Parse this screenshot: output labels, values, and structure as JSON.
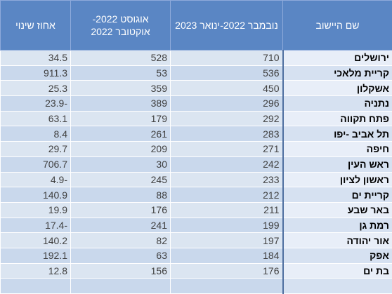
{
  "table": {
    "columns": [
      "שם היישוב",
      "נובמבר 2022-ינואר 2023",
      "אוגוסט 2022-אוקטובר 2022",
      "אחוז שינוי"
    ],
    "rows": [
      [
        "ירושלים",
        "710",
        "528",
        "34.5"
      ],
      [
        "קריית מלאכי",
        "536",
        "53",
        "911.3"
      ],
      [
        "אשקלון",
        "450",
        "359",
        "25.3"
      ],
      [
        "נתניה",
        "296",
        "389",
        "23.9-"
      ],
      [
        "פתח תקווה",
        "292",
        "179",
        "63.1"
      ],
      [
        "תל אביב -יפו",
        "283",
        "261",
        "8.4"
      ],
      [
        "חיפה",
        "271",
        "209",
        "29.7"
      ],
      [
        "ראש העין",
        "242",
        "30",
        "706.7"
      ],
      [
        "ראשון לציון",
        "233",
        "245",
        "4.9-"
      ],
      [
        "קריית ים",
        "212",
        "88",
        "140.9"
      ],
      [
        "באר שבע",
        "211",
        "176",
        "19.9"
      ],
      [
        "רמת גן",
        "199",
        "241",
        "17.4-"
      ],
      [
        "אור יהודה",
        "197",
        "82",
        "140.2"
      ],
      [
        "אפק",
        "184",
        "63",
        "192.1"
      ],
      [
        "בת ים",
        "176",
        "156",
        "12.8"
      ]
    ]
  }
}
